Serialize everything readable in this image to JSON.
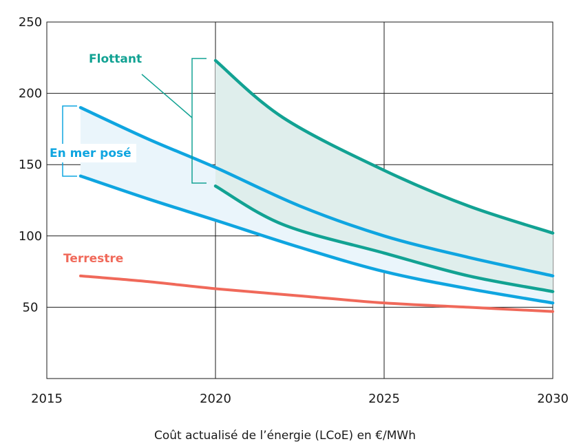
{
  "chart_data": {
    "type": "line",
    "caption": "Coût actualisé de l’énergie (LCoE) en €/MWh",
    "xlim": [
      2015,
      2030
    ],
    "ylim": [
      0,
      250
    ],
    "x_ticks": [
      2015,
      2020,
      2025,
      2030
    ],
    "y_ticks": [
      50,
      100,
      150,
      200,
      250
    ],
    "x_tick_labels": [
      "2015",
      "2020",
      "2025",
      "2030"
    ],
    "y_tick_labels": [
      "50",
      "100",
      "150",
      "200",
      "250"
    ],
    "grid": true,
    "series": [
      {
        "name": "Flottant",
        "color": "#12a293",
        "band_fill": "#dfeeec",
        "upper": {
          "x": [
            2020,
            2022,
            2025,
            2027.5,
            2030
          ],
          "y": [
            223,
            183,
            146,
            121,
            102
          ]
        },
        "lower": {
          "x": [
            2020,
            2022,
            2025,
            2027.5,
            2030
          ],
          "y": [
            135,
            108,
            88,
            72,
            61
          ]
        }
      },
      {
        "name": "En mer posé",
        "color": "#0fa5e0",
        "band_fill": "#eaf5fb",
        "upper": {
          "x": [
            2016,
            2018,
            2020,
            2022.5,
            2025,
            2027.5,
            2030
          ],
          "y": [
            190,
            168,
            148,
            121,
            100,
            85,
            72
          ]
        },
        "lower": {
          "x": [
            2016,
            2018,
            2020,
            2022.5,
            2025,
            2027.5,
            2030
          ],
          "y": [
            142,
            126,
            111,
            92,
            75,
            63,
            53
          ]
        }
      },
      {
        "name": "Terrestre",
        "color": "#f0695a",
        "line": {
          "x": [
            2016,
            2018,
            2020,
            2022.5,
            2025,
            2027.5,
            2030
          ],
          "y": [
            72,
            68,
            63,
            58,
            53,
            50,
            47
          ]
        }
      }
    ]
  }
}
